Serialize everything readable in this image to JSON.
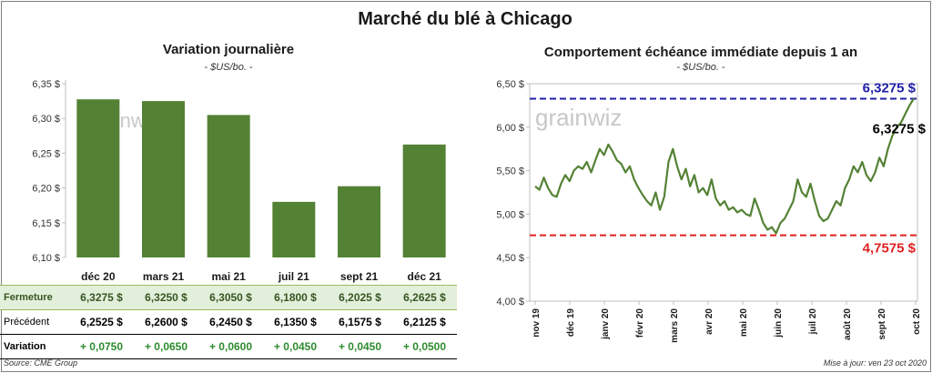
{
  "title": "Marché du blé à Chicago",
  "left": {
    "subtitle": "Variation journalière",
    "unit": "- $US/bo. -",
    "watermark": "grainwiz",
    "chart_data": {
      "type": "bar",
      "categories": [
        "déc 20",
        "mars 21",
        "mai 21",
        "juil 21",
        "sept 21",
        "déc 21"
      ],
      "values": [
        6.3275,
        6.325,
        6.305,
        6.18,
        6.2025,
        6.2625
      ],
      "yticks": [
        "6,35 $",
        "6,30 $",
        "6,25 $",
        "6,20 $",
        "6,15 $",
        "6,10 $"
      ],
      "ytick_values": [
        6.35,
        6.3,
        6.25,
        6.2,
        6.15,
        6.1
      ],
      "ylim": [
        6.1,
        6.35
      ],
      "bar_color": "#548235"
    },
    "table": {
      "rows": [
        {
          "label": "Fermeture",
          "values": [
            "6,3275  $",
            "6,3250  $",
            "6,3050  $",
            "6,1800  $",
            "6,2025  $",
            "6,2625  $"
          ]
        },
        {
          "label": "Précédent",
          "values": [
            "6,2525  $",
            "6,2600  $",
            "6,2450  $",
            "6,1350  $",
            "6,1575  $",
            "6,2125  $"
          ]
        },
        {
          "label": "Variation",
          "values": [
            "+ 0,0750",
            "+ 0,0650",
            "+ 0,0600",
            "+ 0,0450",
            "+ 0,0450",
            "+ 0,0500"
          ]
        }
      ]
    }
  },
  "right": {
    "subtitle": "Comportement  échéance immédiate depuis 1 an",
    "unit": "- $US/bo. -",
    "watermark": "grainwiz",
    "chart_data": {
      "type": "line",
      "ylim": [
        4.0,
        6.5
      ],
      "yticks": [
        "6,50 $",
        "6,00 $",
        "5,50 $",
        "5,00 $",
        "4,50 $",
        "4,00 $"
      ],
      "ytick_values": [
        6.5,
        6.0,
        5.5,
        5.0,
        4.5,
        4.0
      ],
      "xticks": [
        "nov 19",
        "déc 19",
        "janv 20",
        "févr 20",
        "mars 20",
        "avr 20",
        "mai 20",
        "juin 20",
        "juil 20",
        "août 20",
        "sept 20",
        "oct 20"
      ],
      "high": {
        "value": 6.3275,
        "label": "6,3275 $",
        "color": "#1f1fa8"
      },
      "low": {
        "value": 4.7575,
        "label": "4,7575 $",
        "color": "#e02020"
      },
      "last_label": "6,3275 $",
      "line_color": "#548235",
      "series": [
        5.32,
        5.28,
        5.42,
        5.3,
        5.22,
        5.2,
        5.35,
        5.45,
        5.38,
        5.5,
        5.55,
        5.52,
        5.6,
        5.48,
        5.62,
        5.75,
        5.68,
        5.8,
        5.72,
        5.62,
        5.58,
        5.48,
        5.55,
        5.4,
        5.3,
        5.22,
        5.15,
        5.1,
        5.25,
        5.05,
        5.2,
        5.6,
        5.75,
        5.55,
        5.4,
        5.52,
        5.32,
        5.45,
        5.25,
        5.3,
        5.22,
        5.4,
        5.18,
        5.1,
        5.15,
        5.05,
        5.08,
        5.02,
        5.05,
        5.0,
        4.98,
        5.18,
        5.05,
        4.9,
        4.82,
        4.85,
        4.78,
        4.9,
        4.95,
        5.05,
        5.15,
        5.4,
        5.25,
        5.2,
        5.35,
        5.15,
        4.98,
        4.92,
        4.95,
        5.05,
        5.15,
        5.1,
        5.3,
        5.4,
        5.55,
        5.48,
        5.6,
        5.45,
        5.38,
        5.48,
        5.65,
        5.55,
        5.75,
        5.9,
        6.0,
        6.05,
        6.15,
        6.25,
        6.33
      ]
    }
  },
  "footer": {
    "source": "Source: CME Group",
    "update": "Mise à jour: ven 23 oct 2020"
  }
}
